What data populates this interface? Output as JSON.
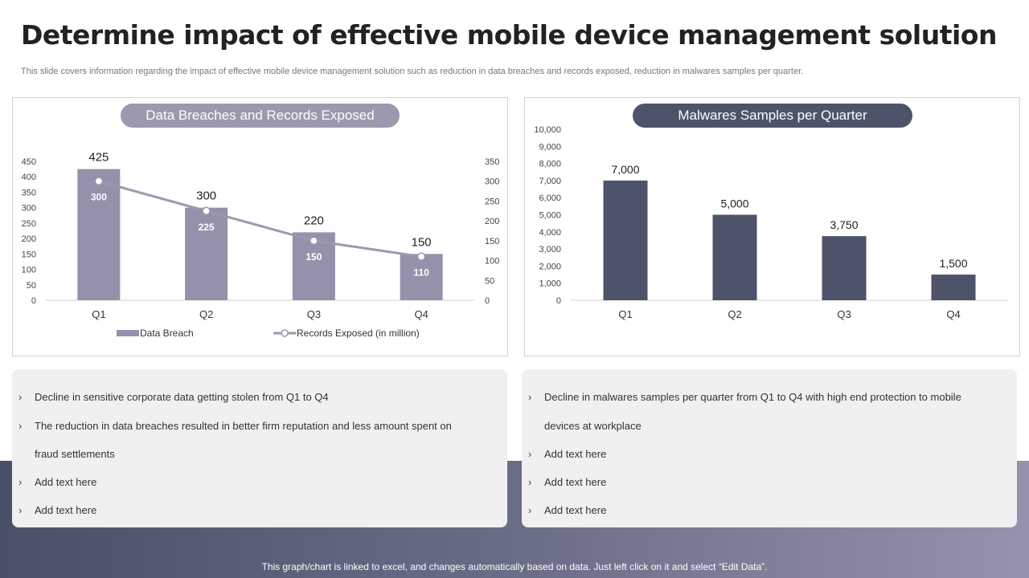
{
  "header": {
    "title": "Determine impact of effective mobile device management solution",
    "subtitle": "This slide covers information regarding the impact of effective mobile device management  solution such as reduction in data breaches and records exposed, reduction in malwares samples per quarter."
  },
  "colors": {
    "bar_light": "#9691ab",
    "bar_dark": "#4d5369",
    "line": "#9c99ae"
  },
  "chart_data": [
    {
      "type": "bar",
      "title": "Data Breaches and Records Exposed",
      "categories": [
        "Q1",
        "Q2",
        "Q3",
        "Q4"
      ],
      "series": [
        {
          "name": "Data Breach",
          "type": "bar",
          "values": [
            425,
            300,
            220,
            150
          ],
          "axis": "left"
        },
        {
          "name": "Records Exposed (in million)",
          "type": "line",
          "values": [
            300,
            225,
            150,
            110
          ],
          "axis": "right"
        }
      ],
      "ylim_left": [
        0,
        450
      ],
      "ytick_step_left": 50,
      "ylim_right": [
        0,
        350
      ],
      "ytick_step_right": 50,
      "legend": "bottom"
    },
    {
      "type": "bar",
      "title": "Malwares Samples per Quarter",
      "categories": [
        "Q1",
        "Q2",
        "Q3",
        "Q4"
      ],
      "values": [
        7000,
        5000,
        3750,
        1500
      ],
      "value_labels": [
        "7,000",
        "5,000",
        "3,750",
        "1,500"
      ],
      "ylim": [
        0,
        10000
      ],
      "ytick_step": 1000
    }
  ],
  "left_text": {
    "b1": "Decline in sensitive corporate data getting stolen from Q1 to Q4",
    "b2": "The reduction in data breaches resulted in better firm reputation and less amount spent on",
    "b2_cont": "fraud settlements",
    "b3": "Add text here",
    "b4": "Add text here"
  },
  "right_text": {
    "b1": "Decline in malwares samples per quarter from Q1 to Q4 with high end protection to mobile",
    "b1_cont": "devices at workplace",
    "b2": "Add text here",
    "b3": "Add text here",
    "b4": "Add text here"
  },
  "bullet_glyph": "›",
  "footer": "This graph/chart is linked to excel, and changes automatically based on data. Just left click on it and select “Edit Data”."
}
